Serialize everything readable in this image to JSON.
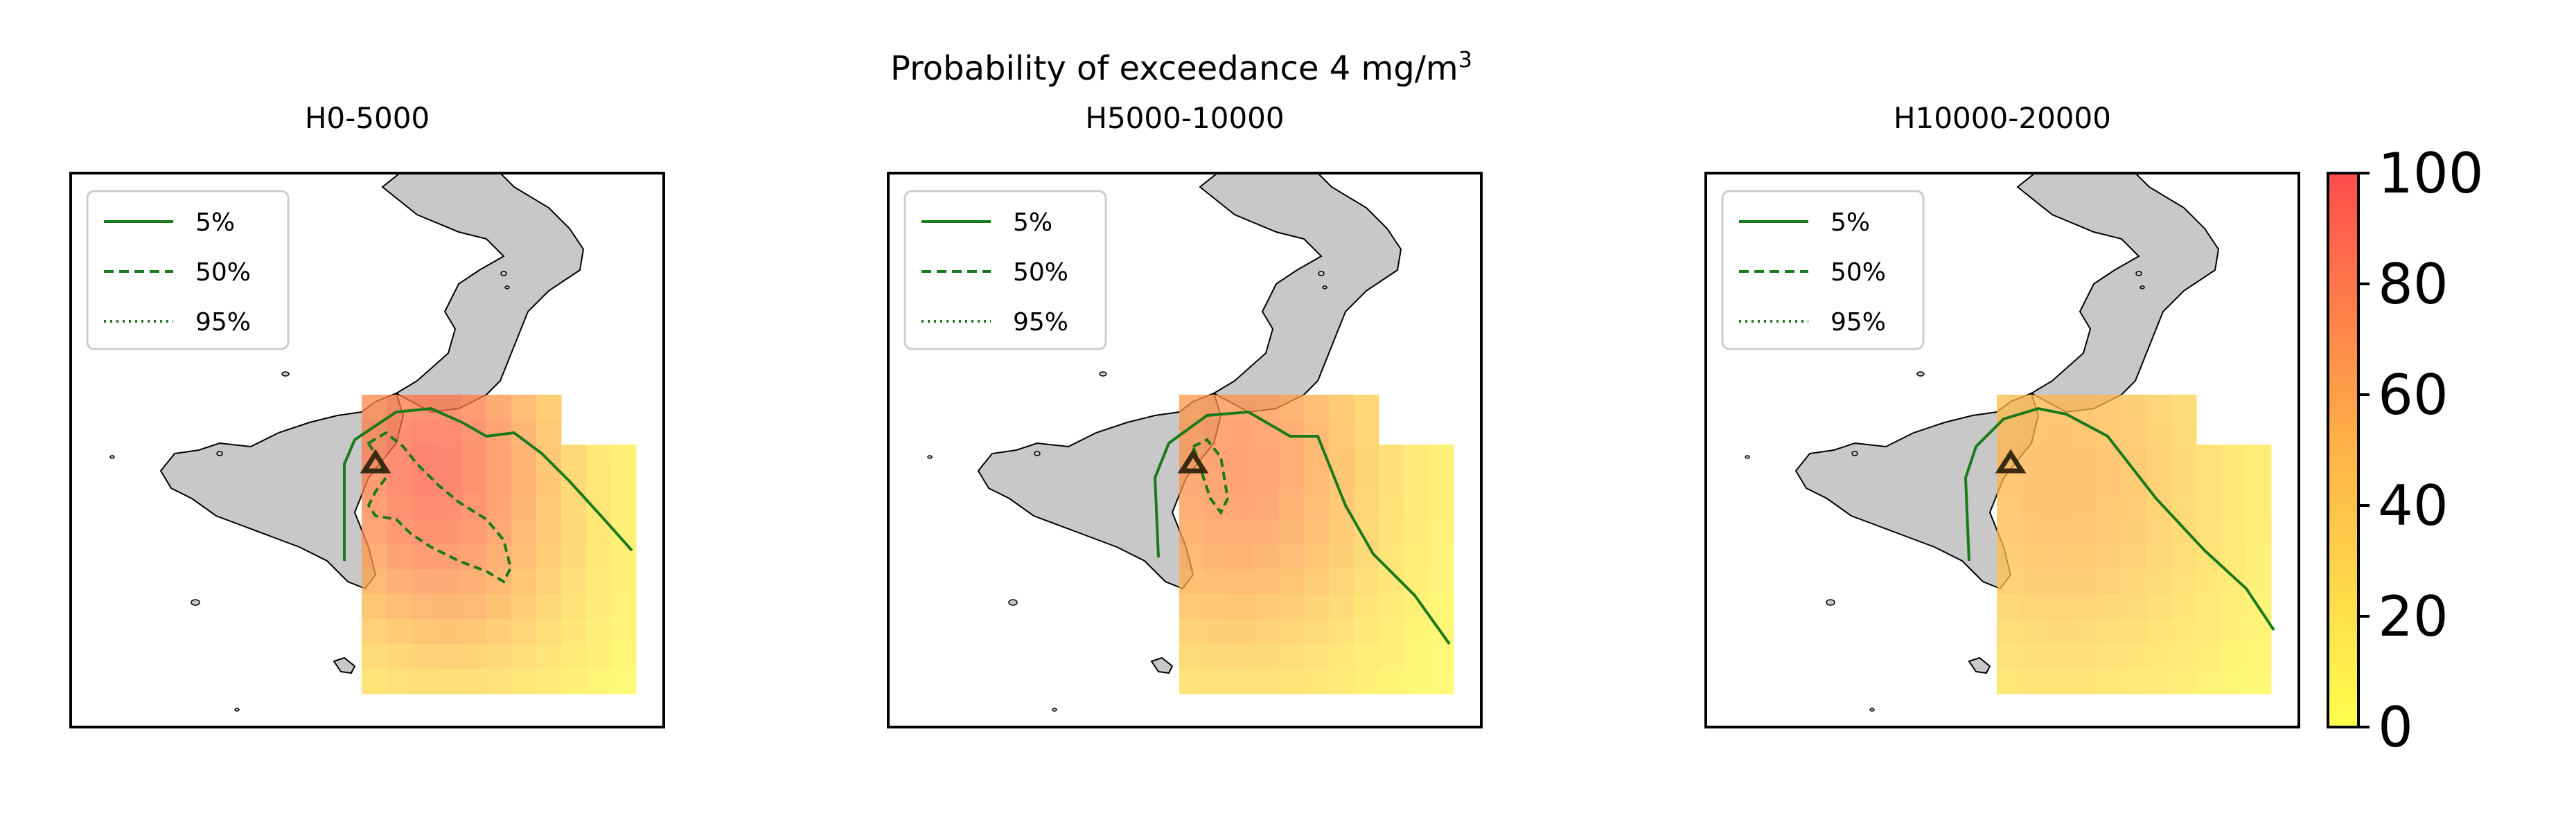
{
  "figure": {
    "suptitle_main": "Probability of exceedance 4 mg/m",
    "suptitle_sup": "3"
  },
  "panels": [
    {
      "title": "H0-5000",
      "legend": [
        {
          "label": "5%",
          "style": "solid"
        },
        {
          "label": "50%",
          "style": "dashed"
        },
        {
          "label": "95%",
          "style": "dotted"
        }
      ]
    },
    {
      "title": "H5000-10000",
      "legend": [
        {
          "label": "5%",
          "style": "solid"
        },
        {
          "label": "50%",
          "style": "dashed"
        },
        {
          "label": "95%",
          "style": "dotted"
        }
      ]
    },
    {
      "title": "H10000-20000",
      "legend": [
        {
          "label": "5%",
          "style": "solid"
        },
        {
          "label": "50%",
          "style": "dashed"
        },
        {
          "label": "95%",
          "style": "dotted"
        }
      ]
    }
  ],
  "colorbar": {
    "ticks": [
      "0",
      "20",
      "40",
      "60",
      "80",
      "100"
    ],
    "range": [
      0,
      100
    ],
    "colors": [
      "#ffff4d",
      "#ff4d4d"
    ]
  },
  "colors": {
    "land": "#c8c8c8",
    "contour": "#1a7a1a",
    "vent_marker": "#3a2a10"
  },
  "icons": {
    "vent": "triangle-marker-icon"
  }
}
